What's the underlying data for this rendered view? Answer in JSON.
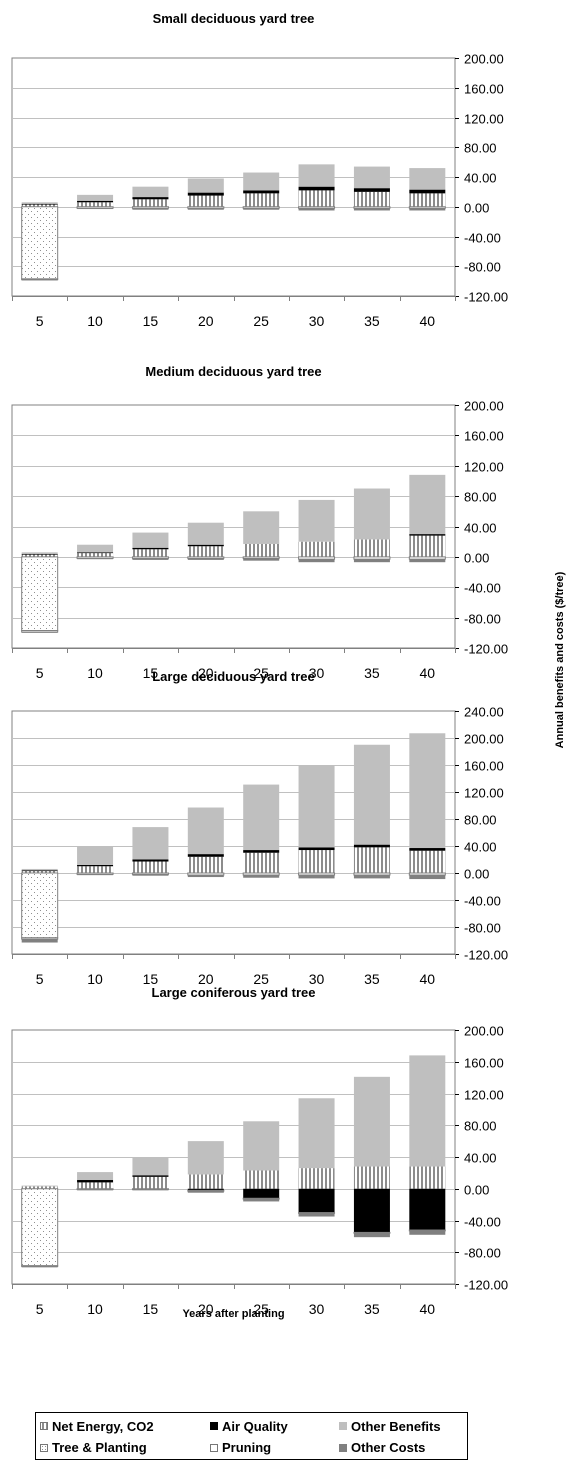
{
  "ylabel": "Annual benefits and costs ($/tree)",
  "legend": {
    "items": [
      {
        "label": "Net Energy, CO2",
        "swatch": "vstripe"
      },
      {
        "label": "Air Quality",
        "swatch": "black"
      },
      {
        "label": "Other Benefits",
        "swatch": "lightgray"
      },
      {
        "label": "Tree & Planting",
        "swatch": "dots"
      },
      {
        "label": "Pruning",
        "swatch": "white"
      },
      {
        "label": "Other Costs",
        "swatch": "darkgray"
      }
    ]
  },
  "colors": {
    "other_benefits": "#bfbfbf",
    "air_quality": "#000000",
    "other_costs": "#808080",
    "gridline": "#c0c0c0",
    "axis": "#808080"
  },
  "chart_data": [
    {
      "type": "bar",
      "stacked": true,
      "title": "Small deciduous yard tree",
      "xlabel": "",
      "categories": [
        "5",
        "10",
        "15",
        "20",
        "25",
        "30",
        "35",
        "40"
      ],
      "ylim": [
        -120,
        200
      ],
      "yticks": [
        -120,
        -80,
        -40,
        0,
        40,
        80,
        120,
        160,
        200
      ],
      "ytick_labels": [
        "-120.00",
        "-80.00",
        "-40.00",
        "0.00",
        "40.00",
        "80.00",
        "120.00",
        "160.00",
        "200.00"
      ],
      "series": [
        {
          "name": "Net Energy, CO2",
          "values": [
            3,
            6,
            10,
            15,
            18,
            22,
            20,
            18
          ]
        },
        {
          "name": "Air Quality",
          "values": [
            1,
            2,
            3,
            4,
            4,
            5,
            5,
            5
          ]
        },
        {
          "name": "Other Benefits",
          "values": [
            2,
            8,
            14,
            19,
            24,
            30,
            29,
            29
          ]
        },
        {
          "name": "Tree & Planting",
          "values": [
            -97,
            0,
            0,
            0,
            0,
            0,
            0,
            0
          ]
        },
        {
          "name": "Pruning",
          "values": [
            -1,
            -2,
            -2,
            -2,
            -2,
            -2,
            -2,
            -2
          ]
        },
        {
          "name": "Other Costs",
          "values": [
            -1,
            -1,
            -2,
            -2,
            -2,
            -3,
            -3,
            -3
          ]
        }
      ]
    },
    {
      "type": "bar",
      "stacked": true,
      "title": "Medium deciduous yard tree",
      "xlabel": "",
      "categories": [
        "5",
        "10",
        "15",
        "20",
        "25",
        "30",
        "35",
        "40"
      ],
      "ylim": [
        -120,
        200
      ],
      "yticks": [
        -120,
        -80,
        -40,
        0,
        40,
        80,
        120,
        160,
        200
      ],
      "ytick_labels": [
        "-120.00",
        "-80.00",
        "-40.00",
        "0.00",
        "40.00",
        "80.00",
        "120.00",
        "160.00",
        "200.00"
      ],
      "series": [
        {
          "name": "Net Energy, CO2",
          "values": [
            3,
            5,
            10,
            14,
            17,
            20,
            23,
            28
          ]
        },
        {
          "name": "Air Quality",
          "values": [
            1,
            1,
            2,
            2,
            0,
            0,
            0,
            2
          ]
        },
        {
          "name": "Other Benefits",
          "values": [
            2,
            10,
            20,
            29,
            43,
            55,
            67,
            78
          ]
        },
        {
          "name": "Tree & Planting",
          "values": [
            -97,
            0,
            0,
            0,
            0,
            0,
            0,
            0
          ]
        },
        {
          "name": "Pruning",
          "values": [
            -2,
            -2,
            -2,
            -2,
            -2,
            -3,
            -3,
            -3
          ]
        },
        {
          "name": "Other Costs",
          "values": [
            -1,
            -1,
            -2,
            -2,
            -3,
            -4,
            -4,
            -4
          ]
        }
      ]
    },
    {
      "type": "bar",
      "stacked": true,
      "title": "Large deciduous yard tree",
      "xlabel": "",
      "categories": [
        "5",
        "10",
        "15",
        "20",
        "25",
        "30",
        "35",
        "40"
      ],
      "ylim": [
        -120,
        240
      ],
      "yticks": [
        -120,
        -80,
        -40,
        0,
        40,
        80,
        120,
        160,
        200,
        240
      ],
      "ytick_labels": [
        "-120.00",
        "-80.00",
        "-40.00",
        "0.00",
        "40.00",
        "80.00",
        "120.00",
        "160.00",
        "200.00",
        "240.00"
      ],
      "series": [
        {
          "name": "Net Energy, CO2",
          "values": [
            3,
            10,
            17,
            24,
            30,
            34,
            38,
            33
          ]
        },
        {
          "name": "Air Quality",
          "values": [
            1,
            2,
            3,
            4,
            4,
            4,
            4,
            4
          ]
        },
        {
          "name": "Other Benefits",
          "values": [
            2,
            28,
            48,
            69,
            97,
            122,
            148,
            170
          ]
        },
        {
          "name": "Tree & Planting",
          "values": [
            -96,
            0,
            0,
            0,
            0,
            0,
            0,
            0
          ]
        },
        {
          "name": "Pruning",
          "values": [
            -2,
            -2,
            -2,
            -3,
            -3,
            -3,
            -3,
            -3
          ]
        },
        {
          "name": "Other Costs",
          "values": [
            -5,
            -1,
            -2,
            -3,
            -4,
            -5,
            -5,
            -6
          ]
        }
      ]
    },
    {
      "type": "bar",
      "stacked": true,
      "title": "Large coniferous yard tree",
      "xlabel": "Years after planting",
      "categories": [
        "5",
        "10",
        "15",
        "20",
        "25",
        "30",
        "35",
        "40"
      ],
      "ylim": [
        -120,
        200
      ],
      "yticks": [
        -120,
        -80,
        -40,
        0,
        40,
        80,
        120,
        160,
        200
      ],
      "ytick_labels": [
        "-120.00",
        "-80.00",
        "-40.00",
        "0.00",
        "40.00",
        "80.00",
        "120.00",
        "160.00",
        "200.00"
      ],
      "series": [
        {
          "name": "Net Energy, CO2",
          "values": [
            3,
            8,
            15,
            18,
            23,
            26,
            28,
            28
          ]
        },
        {
          "name": "Air Quality",
          "values": [
            0,
            3,
            2,
            -2,
            -12,
            -30,
            -55,
            -52
          ]
        },
        {
          "name": "Other Benefits",
          "values": [
            1,
            10,
            23,
            42,
            62,
            88,
            113,
            140
          ]
        },
        {
          "name": "Tree & Planting",
          "values": [
            -97,
            0,
            0,
            0,
            0,
            0,
            0,
            0
          ]
        },
        {
          "name": "Pruning",
          "values": [
            -1,
            -1,
            -1,
            -1,
            -1,
            -1,
            -1,
            -1
          ]
        },
        {
          "name": "Other Costs",
          "values": [
            -1,
            -1,
            -1,
            -2,
            -3,
            -4,
            -5,
            -5
          ]
        }
      ]
    }
  ]
}
